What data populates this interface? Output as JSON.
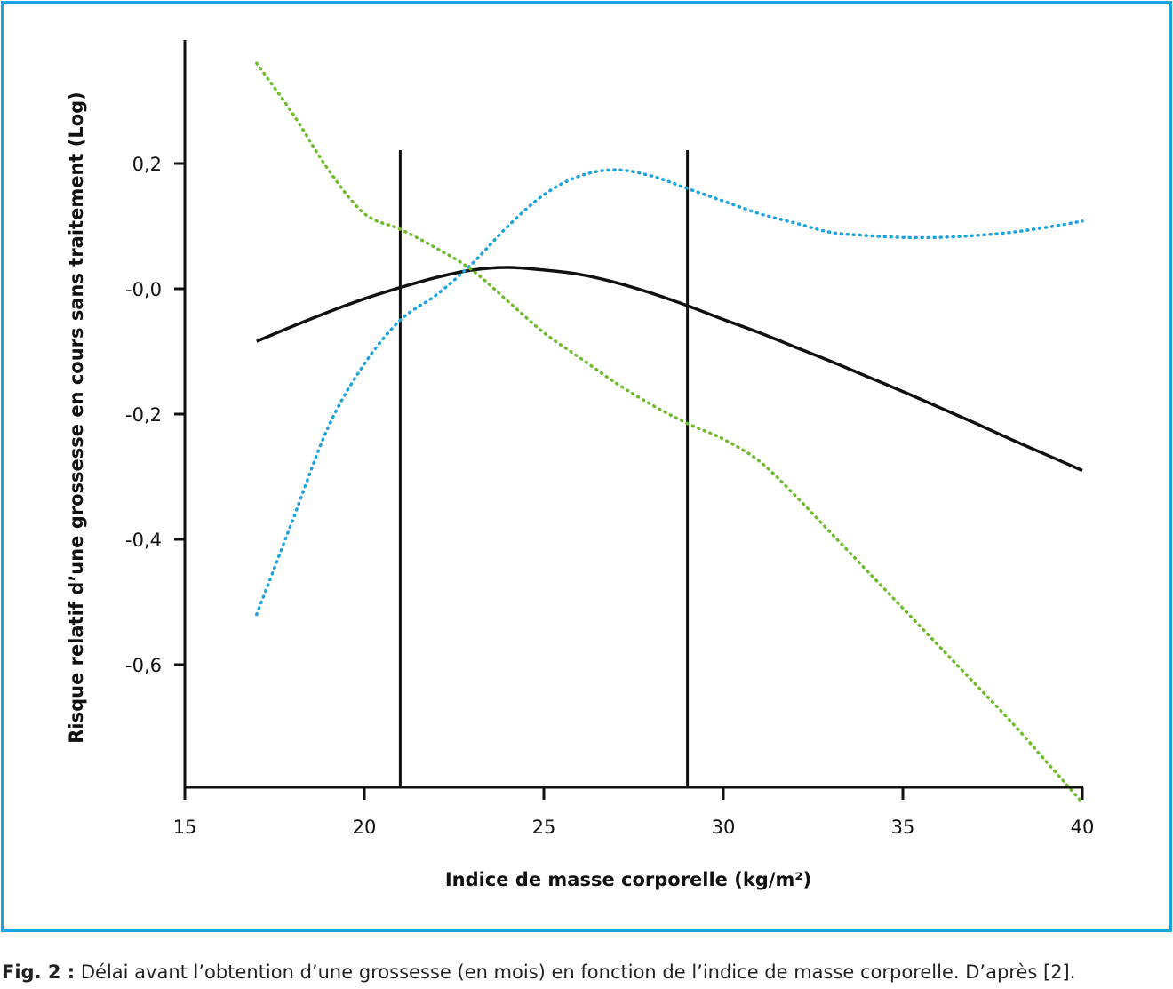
{
  "figure": {
    "border_color": "#1aa3dd",
    "caption_label": "Fig. 2 :",
    "caption_text": " Délai avant l’obtention d’une grossesse (en mois) en fonction de l’indice de masse corporelle. D’après [2]."
  },
  "chart_data": {
    "type": "line",
    "xlabel": "Indice de masse corporelle (kg/m²)",
    "ylabel": "Risque relatif d’une grossesse en cours sans traitement (Log)",
    "xlim": [
      15,
      40
    ],
    "ylim": [
      -0.8,
      0.2
    ],
    "x_ticks": [
      15,
      20,
      25,
      30,
      35,
      40
    ],
    "x_tick_labels": [
      "15",
      "20",
      "25",
      "30",
      "35",
      "40"
    ],
    "y_ticks": [
      0.2,
      0.0,
      -0.2,
      -0.4,
      -0.6
    ],
    "y_tick_labels": [
      "0,2",
      "-0,0",
      "-0,2",
      "-0,4",
      "-0,6"
    ],
    "grid": false,
    "reference_lines_x": [
      21,
      29
    ],
    "series": [
      {
        "style": "solid",
        "color": "#111111",
        "x": [
          17,
          18,
          19,
          20,
          21,
          22,
          23,
          24,
          25,
          26,
          27,
          28,
          29,
          30,
          31,
          32,
          33,
          34,
          35,
          36,
          37,
          38,
          39,
          40
        ],
        "y": [
          -0.084,
          -0.06,
          -0.037,
          -0.016,
          0.002,
          0.018,
          0.03,
          0.034,
          0.03,
          0.023,
          0.01,
          -0.007,
          -0.027,
          -0.049,
          -0.07,
          -0.093,
          -0.116,
          -0.14,
          -0.164,
          -0.189,
          -0.214,
          -0.24,
          -0.265,
          -0.29
        ]
      },
      {
        "style": "dotted",
        "color": "#1aa3dd",
        "x": [
          17,
          18,
          19,
          20,
          21,
          22,
          23,
          24,
          25,
          26,
          27,
          28,
          29,
          30,
          31,
          32,
          33,
          34,
          35,
          36,
          37,
          38,
          39,
          40
        ],
        "y": [
          -0.52,
          -0.37,
          -0.22,
          -0.12,
          -0.05,
          -0.01,
          0.04,
          0.1,
          0.15,
          0.18,
          0.19,
          0.18,
          0.16,
          0.14,
          0.12,
          0.105,
          0.09,
          0.085,
          0.082,
          0.082,
          0.085,
          0.09,
          0.098,
          0.108
        ]
      },
      {
        "style": "dotted",
        "color": "#6dbb2a",
        "x": [
          17,
          18,
          19,
          20,
          21,
          22,
          23,
          24,
          25,
          26,
          27,
          28,
          29,
          30,
          31,
          32,
          33,
          34,
          35,
          36,
          37,
          38,
          39,
          40
        ],
        "y": [
          0.36,
          0.28,
          0.19,
          0.12,
          0.095,
          0.065,
          0.03,
          -0.02,
          -0.07,
          -0.11,
          -0.15,
          -0.185,
          -0.215,
          -0.24,
          -0.275,
          -0.33,
          -0.39,
          -0.45,
          -0.51,
          -0.57,
          -0.63,
          -0.69,
          -0.755,
          -0.82
        ]
      }
    ]
  }
}
